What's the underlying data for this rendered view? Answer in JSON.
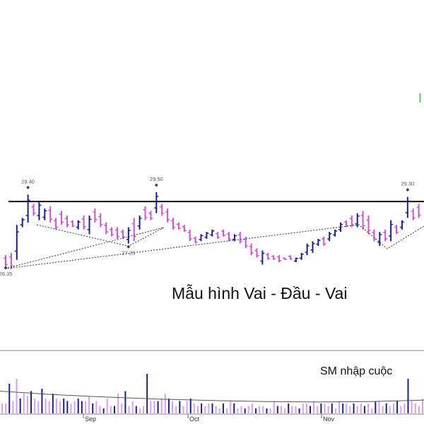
{
  "colors": {
    "up": "#1c1f8a",
    "down": "#cc55cc",
    "volume_up": "#1c1f8a",
    "volume_down": "#d9a0e6",
    "neckline": "#000000",
    "trendline": "#333333",
    "volume_ma": "#555555",
    "green_glyph": "#33cc33"
  },
  "annotations": {
    "pattern_title": "Mẫu hình Vai - Đầu - Vai",
    "volume_title": "SM nhập cuộc"
  },
  "chart_data": [
    {
      "type": "bar",
      "subtype": "ohlc",
      "title": "",
      "x_ticks": [
        "Sep",
        "Oct",
        "Nov"
      ],
      "ylim": [
        25.5,
        32.5
      ],
      "grid": false,
      "legend": "none",
      "point_labels": [
        {
          "label": "29.40",
          "price": 29.4,
          "kind": "high"
        },
        {
          "label": "27.25",
          "price": 27.25,
          "kind": "low"
        },
        {
          "label": "29.50",
          "price": 29.5,
          "kind": "high"
        },
        {
          "label": "26.35",
          "price": 26.35,
          "kind": "low"
        },
        {
          "label": "29.30",
          "price": 29.3,
          "kind": "high"
        }
      ],
      "neckline_price": 29.1,
      "bars": [
        {
          "h": 26.8,
          "l": 26.3,
          "dir": "down"
        },
        {
          "h": 26.9,
          "l": 26.2,
          "dir": "down"
        },
        {
          "h": 28.1,
          "l": 26.6,
          "dir": "up"
        },
        {
          "h": 28.4,
          "l": 28.0,
          "dir": "up"
        },
        {
          "h": 29.4,
          "l": 28.2,
          "dir": "up"
        },
        {
          "h": 29.0,
          "l": 28.5,
          "dir": "down"
        },
        {
          "h": 29.1,
          "l": 28.3,
          "dir": "up"
        },
        {
          "h": 28.8,
          "l": 28.3,
          "dir": "up"
        },
        {
          "h": 28.9,
          "l": 28.2,
          "dir": "down"
        },
        {
          "h": 28.4,
          "l": 27.9,
          "dir": "down"
        },
        {
          "h": 28.7,
          "l": 28.1,
          "dir": "down"
        },
        {
          "h": 28.5,
          "l": 28.0,
          "dir": "down"
        },
        {
          "h": 28.3,
          "l": 28.0,
          "dir": "down"
        },
        {
          "h": 28.3,
          "l": 27.9,
          "dir": "up"
        },
        {
          "h": 28.5,
          "l": 27.9,
          "dir": "down"
        },
        {
          "h": 28.5,
          "l": 27.7,
          "dir": "up"
        },
        {
          "h": 28.8,
          "l": 28.2,
          "dir": "down"
        },
        {
          "h": 28.6,
          "l": 28.0,
          "dir": "down"
        },
        {
          "h": 28.2,
          "l": 27.7,
          "dir": "down"
        },
        {
          "h": 28.0,
          "l": 27.6,
          "dir": "down"
        },
        {
          "h": 28.0,
          "l": 27.5,
          "dir": "down"
        },
        {
          "h": 27.9,
          "l": 27.5,
          "dir": "down"
        },
        {
          "h": 28.0,
          "l": 27.3,
          "dir": "up"
        },
        {
          "h": 28.4,
          "l": 27.4,
          "dir": "down"
        },
        {
          "h": 28.5,
          "l": 27.9,
          "dir": "up"
        },
        {
          "h": 28.9,
          "l": 28.3,
          "dir": "down"
        },
        {
          "h": 28.7,
          "l": 28.3,
          "dir": "down"
        },
        {
          "h": 29.5,
          "l": 28.6,
          "dir": "up"
        },
        {
          "h": 29.0,
          "l": 28.5,
          "dir": "down"
        },
        {
          "h": 28.8,
          "l": 28.2,
          "dir": "down"
        },
        {
          "h": 28.4,
          "l": 27.9,
          "dir": "down"
        },
        {
          "h": 28.2,
          "l": 27.9,
          "dir": "down"
        },
        {
          "h": 28.1,
          "l": 27.8,
          "dir": "down"
        },
        {
          "h": 27.9,
          "l": 27.4,
          "dir": "down"
        },
        {
          "h": 27.6,
          "l": 27.3,
          "dir": "down"
        },
        {
          "h": 27.7,
          "l": 27.4,
          "dir": "up"
        },
        {
          "h": 27.8,
          "l": 27.5,
          "dir": "up"
        },
        {
          "h": 27.9,
          "l": 27.6,
          "dir": "up"
        },
        {
          "h": 27.8,
          "l": 27.5,
          "dir": "down"
        },
        {
          "h": 27.9,
          "l": 27.6,
          "dir": "down"
        },
        {
          "h": 27.8,
          "l": 27.4,
          "dir": "down"
        },
        {
          "h": 27.7,
          "l": 27.4,
          "dir": "up"
        },
        {
          "h": 27.8,
          "l": 27.3,
          "dir": "down"
        },
        {
          "h": 27.6,
          "l": 27.1,
          "dir": "down"
        },
        {
          "h": 27.3,
          "l": 26.8,
          "dir": "down"
        },
        {
          "h": 27.1,
          "l": 26.7,
          "dir": "down"
        },
        {
          "h": 27.0,
          "l": 26.4,
          "dir": "up"
        },
        {
          "h": 26.9,
          "l": 26.6,
          "dir": "down"
        },
        {
          "h": 26.8,
          "l": 26.6,
          "dir": "down"
        },
        {
          "h": 26.8,
          "l": 26.5,
          "dir": "down"
        },
        {
          "h": 26.7,
          "l": 26.6,
          "dir": "down"
        },
        {
          "h": 26.8,
          "l": 26.6,
          "dir": "down"
        },
        {
          "h": 26.7,
          "l": 26.5,
          "dir": "up"
        },
        {
          "h": 26.9,
          "l": 26.6,
          "dir": "up"
        },
        {
          "h": 27.3,
          "l": 26.8,
          "dir": "up"
        },
        {
          "h": 27.4,
          "l": 26.9,
          "dir": "up"
        },
        {
          "h": 27.5,
          "l": 27.2,
          "dir": "up"
        },
        {
          "h": 27.6,
          "l": 27.2,
          "dir": "down"
        },
        {
          "h": 27.8,
          "l": 27.4,
          "dir": "up"
        },
        {
          "h": 27.9,
          "l": 27.6,
          "dir": "up"
        },
        {
          "h": 28.2,
          "l": 27.8,
          "dir": "up"
        },
        {
          "h": 28.3,
          "l": 28.0,
          "dir": "down"
        },
        {
          "h": 28.5,
          "l": 28.0,
          "dir": "down"
        },
        {
          "h": 28.6,
          "l": 28.0,
          "dir": "up"
        },
        {
          "h": 28.7,
          "l": 27.9,
          "dir": "down"
        },
        {
          "h": 28.5,
          "l": 27.7,
          "dir": "down"
        },
        {
          "h": 27.9,
          "l": 27.4,
          "dir": "down"
        },
        {
          "h": 27.8,
          "l": 27.2,
          "dir": "up"
        },
        {
          "h": 27.9,
          "l": 27.4,
          "dir": "down"
        },
        {
          "h": 28.3,
          "l": 27.4,
          "dir": "up"
        },
        {
          "h": 28.1,
          "l": 27.7,
          "dir": "down"
        },
        {
          "h": 28.3,
          "l": 27.9,
          "dir": "up"
        },
        {
          "h": 29.3,
          "l": 28.4,
          "dir": "up"
        },
        {
          "h": 28.8,
          "l": 28.3,
          "dir": "down"
        },
        {
          "h": 29.0,
          "l": 28.4,
          "dir": "down"
        }
      ]
    },
    {
      "type": "bar",
      "subtype": "volume",
      "title": "SM nhập cuộc",
      "x_ticks": [
        "Sep",
        "Oct",
        "Nov"
      ],
      "ylim": [
        0,
        100
      ],
      "values": [
        20,
        20,
        60,
        25,
        70,
        30,
        40,
        35,
        45,
        30,
        25,
        50,
        30,
        25,
        40,
        30,
        25,
        30,
        25,
        20,
        25,
        30,
        25,
        25,
        35,
        20,
        25,
        15,
        10,
        30,
        15,
        15,
        40,
        20,
        45,
        15,
        25,
        15,
        10,
        15,
        80,
        25,
        25,
        25,
        30,
        40,
        30,
        25,
        15,
        25,
        15,
        25,
        30,
        20,
        15,
        20,
        15,
        20,
        20,
        15,
        10,
        20,
        10,
        25,
        20,
        10,
        15,
        10,
        15,
        20,
        10,
        15,
        15,
        10,
        10,
        25,
        15,
        15,
        10,
        20,
        15,
        15,
        10,
        20,
        20,
        15,
        25,
        15,
        20,
        20,
        15,
        20,
        10,
        25,
        20,
        20,
        15,
        20,
        15,
        20,
        15,
        20,
        10,
        25,
        25,
        15,
        20,
        15,
        20,
        25,
        15,
        20,
        70,
        25,
        20,
        15,
        30
      ],
      "dirs": "ddudduddudduddudduudduudduddudduddudduddudduddudduddudduddudduddudduddudduddudduddudduddudduddudduddudduddudduddud",
      "moving_average": [
        45,
        38,
        33,
        29,
        26,
        24,
        23,
        24,
        27
      ]
    }
  ]
}
